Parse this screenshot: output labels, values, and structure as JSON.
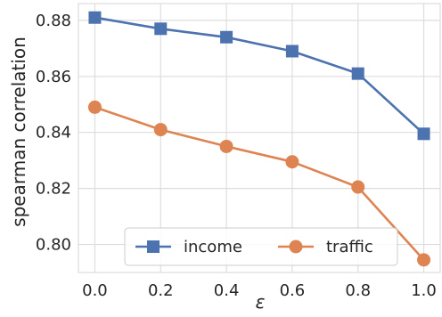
{
  "chart_data": {
    "type": "line",
    "title": "",
    "xlabel": "ε",
    "ylabel": "spearman correlation",
    "x": [
      0.0,
      0.2,
      0.4,
      0.6,
      0.8,
      1.0
    ],
    "xlim": [
      -0.05,
      1.05
    ],
    "ylim": [
      0.79,
      0.886
    ],
    "xticks": [
      0.0,
      0.2,
      0.4,
      0.6,
      0.8,
      1.0
    ],
    "xtick_labels": [
      "0.0",
      "0.2",
      "0.4",
      "0.6",
      "0.8",
      "1.0"
    ],
    "yticks": [
      0.8,
      0.82,
      0.84,
      0.86,
      0.88
    ],
    "ytick_labels": [
      "0.80",
      "0.82",
      "0.84",
      "0.86",
      "0.88"
    ],
    "grid": true,
    "legend_position": "lower-center",
    "series": [
      {
        "name": "income",
        "marker": "square",
        "color": "#4C72B0",
        "values": [
          0.881,
          0.877,
          0.874,
          0.869,
          0.861,
          0.8395
        ]
      },
      {
        "name": "traffic",
        "marker": "circle",
        "color": "#DD8452",
        "values": [
          0.849,
          0.841,
          0.835,
          0.8295,
          0.8205,
          0.7945
        ]
      }
    ]
  }
}
